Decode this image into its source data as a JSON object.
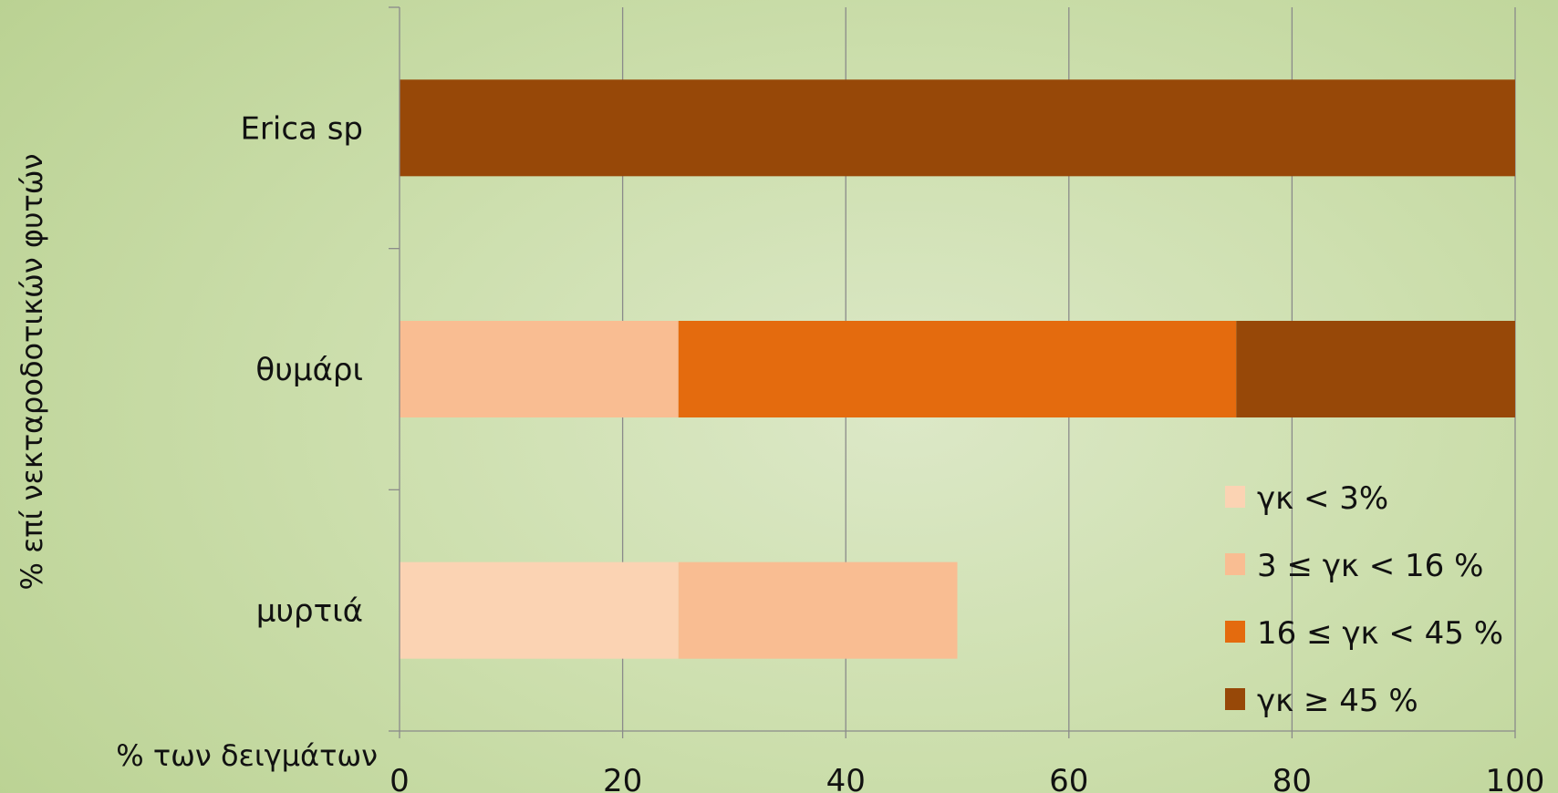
{
  "chart_data": {
    "type": "bar",
    "orientation": "horizontal",
    "stacked": true,
    "title": "",
    "xlabel": "% των δειγμάτων",
    "ylabel": "% επί νεκταροδοτικών φυτών",
    "xlim": [
      0,
      100
    ],
    "xticks": [
      0,
      20,
      40,
      60,
      80,
      100
    ],
    "grid": true,
    "legend_position": "bottom-right",
    "categories": [
      "Erica sp",
      "θυμάρι",
      "μυρτιά"
    ],
    "series": [
      {
        "name": "γκ < 3%",
        "color": "#fbd3b3",
        "values": [
          0,
          0,
          25
        ]
      },
      {
        "name": "3 ≤ γκ < 16 %",
        "color": "#f9bd92",
        "values": [
          0,
          25,
          25
        ]
      },
      {
        "name": "16 ≤ γκ < 45 %",
        "color": "#e46b0e",
        "values": [
          0,
          50,
          0
        ]
      },
      {
        "name": "γκ ≥ 45 %",
        "color": "#974808",
        "values": [
          100,
          25,
          0
        ]
      }
    ]
  }
}
